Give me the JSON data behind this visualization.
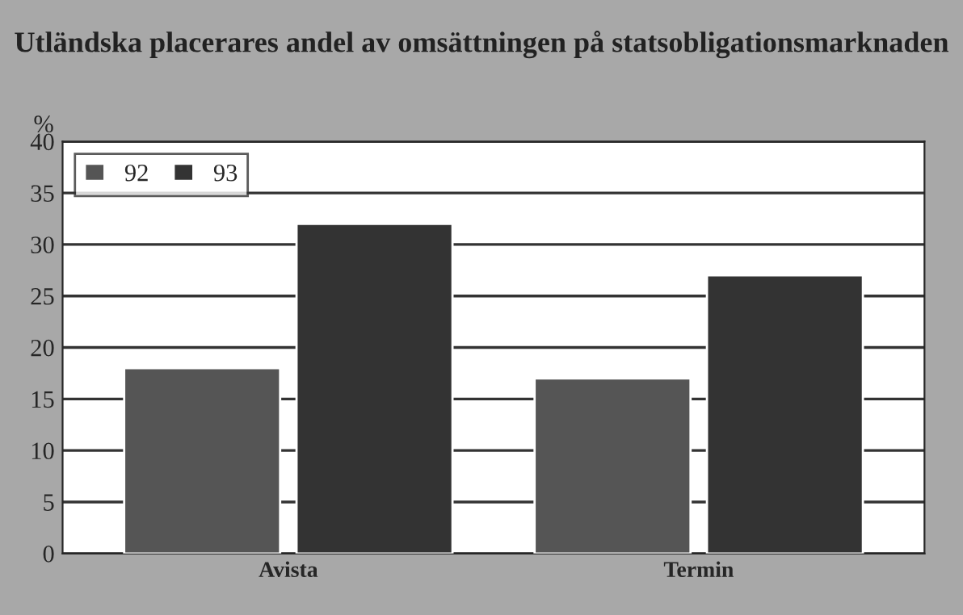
{
  "chart_data": {
    "type": "bar",
    "title": "Utländska placerares andel av omsättningen på statsobligationsmarknaden",
    "ylabel": "%",
    "categories": [
      "Avista",
      "Termin"
    ],
    "series": [
      {
        "name": "92",
        "color": "#555555",
        "values": [
          18,
          17
        ]
      },
      {
        "name": "93",
        "color": "#333333",
        "values": [
          32,
          27
        ]
      }
    ],
    "ylim": [
      0,
      40
    ],
    "yticks": [
      0,
      5,
      10,
      15,
      20,
      25,
      30,
      35,
      40
    ],
    "grid": "y",
    "legend": "top left"
  }
}
